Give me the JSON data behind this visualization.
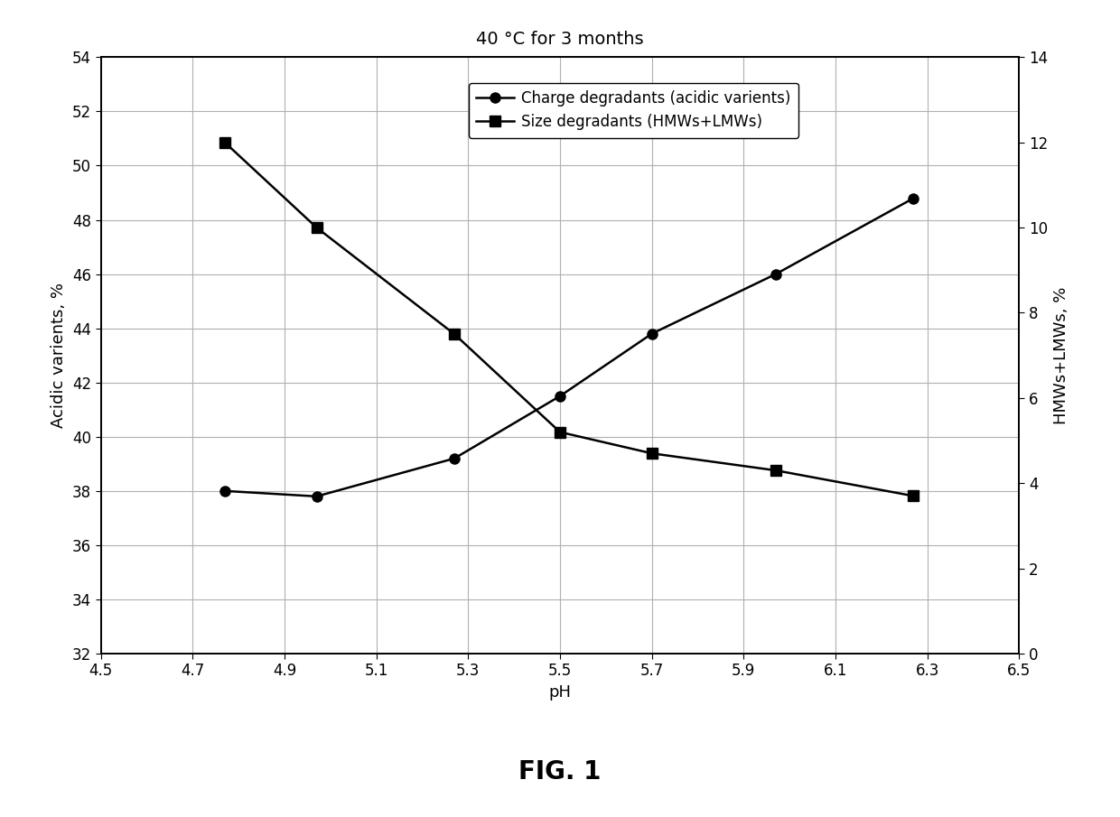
{
  "title": "40 °C for 3 months",
  "xlabel": "pH",
  "ylabel_left": "Acidic varients, %",
  "ylabel_right": "HMWs+LMWs, %",
  "charge_x": [
    4.77,
    4.97,
    5.27,
    5.5,
    5.7,
    5.97,
    6.27
  ],
  "charge_y": [
    38.0,
    37.8,
    39.2,
    41.5,
    43.8,
    46.0,
    48.8
  ],
  "size_x": [
    4.77,
    4.97,
    5.27,
    5.5,
    5.7,
    5.97,
    6.27
  ],
  "size_y": [
    12.0,
    10.0,
    7.5,
    5.2,
    4.7,
    4.3,
    3.7
  ],
  "xlim": [
    4.5,
    6.5
  ],
  "xticks": [
    4.5,
    4.7,
    4.9,
    5.1,
    5.3,
    5.5,
    5.7,
    5.9,
    6.1,
    6.3,
    6.5
  ],
  "ylim_left": [
    32,
    54
  ],
  "yticks_left": [
    32,
    34,
    36,
    38,
    40,
    42,
    44,
    46,
    48,
    50,
    52,
    54
  ],
  "ylim_right": [
    0,
    14
  ],
  "yticks_right": [
    0,
    2,
    4,
    6,
    8,
    10,
    12,
    14
  ],
  "line_color": "#000000",
  "legend_charge": "Charge degradants (acidic varients)",
  "legend_size": "Size degradants (HMWs+LMWs)",
  "fig_caption": "FIG. 1",
  "background_color": "#ffffff",
  "grid_color": "#b0b0b0",
  "title_fontsize": 14,
  "axis_label_fontsize": 13,
  "tick_fontsize": 12,
  "legend_fontsize": 12,
  "caption_fontsize": 20,
  "linewidth": 1.8,
  "markersize": 8
}
